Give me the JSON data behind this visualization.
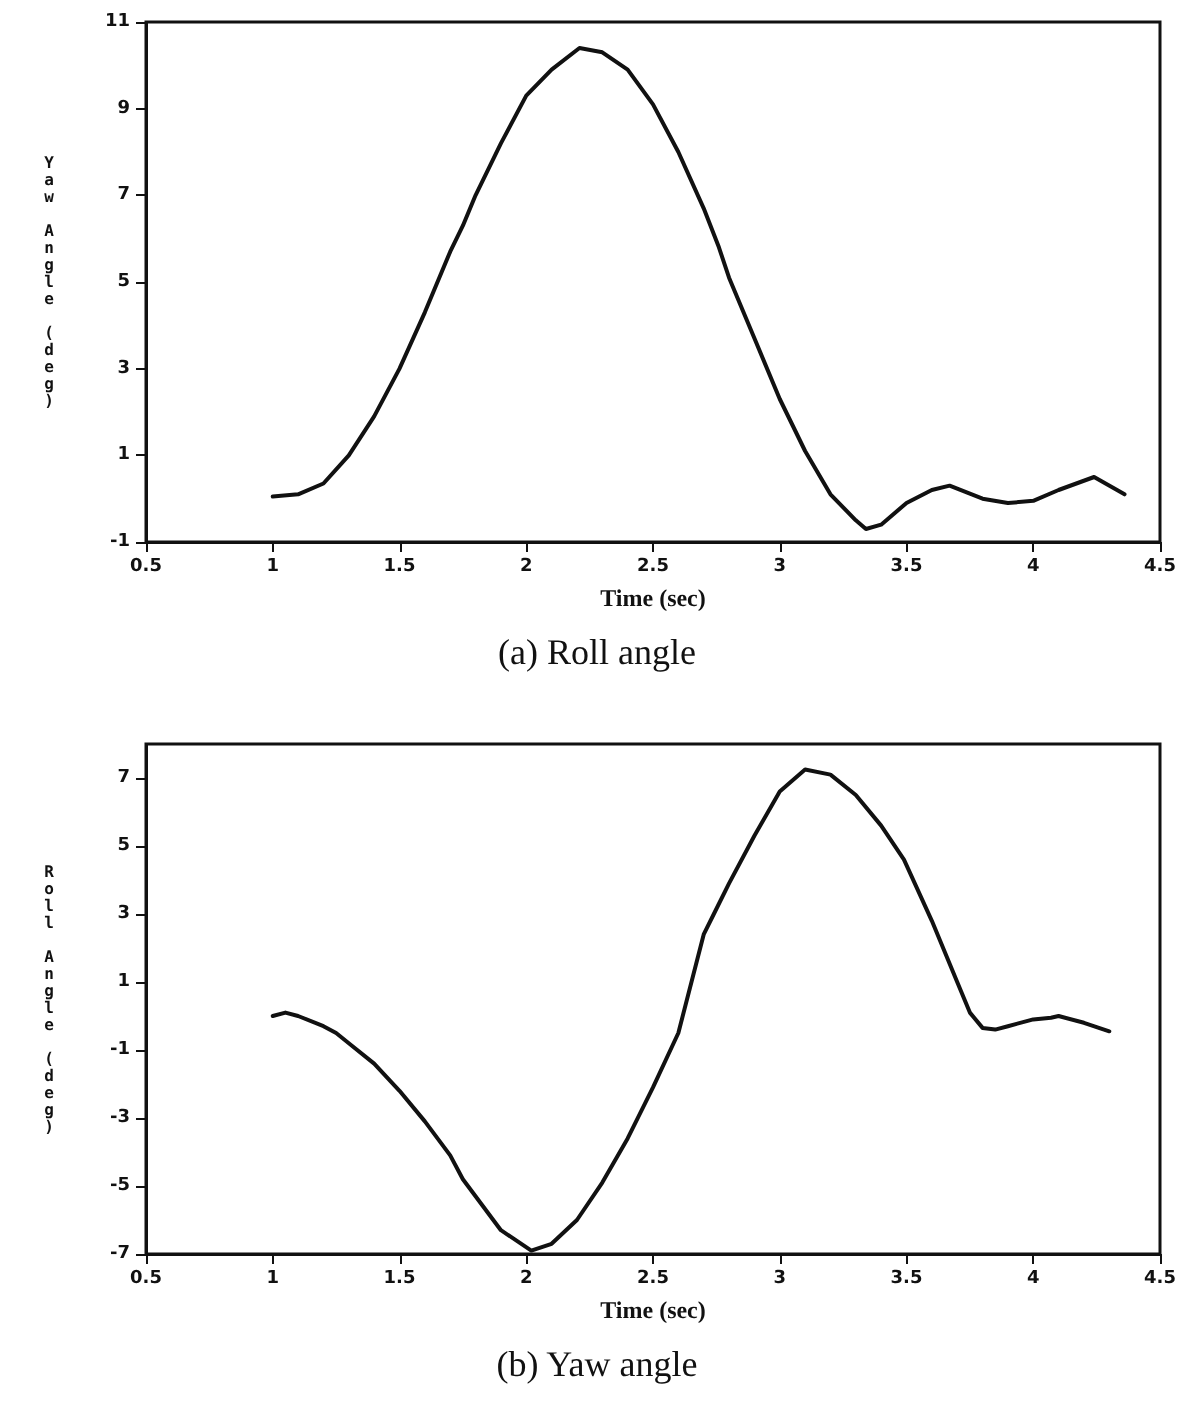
{
  "chart_data": [
    {
      "type": "line",
      "title": "(a) Roll angle",
      "xlabel": "Time (sec)",
      "ylabel": "Yaw Angle (deg)",
      "xlim": [
        0.5,
        4.5
      ],
      "xticks": [
        0.5,
        1,
        1.5,
        2,
        2.5,
        3,
        3.5,
        4,
        4.5
      ],
      "ylim": [
        -1,
        11
      ],
      "yticks": [
        -1,
        1,
        3,
        5,
        7,
        9,
        11
      ],
      "marker": "none",
      "line_style": "solid",
      "series": [
        {
          "color": "#111111",
          "x": [
            1,
            1.1,
            1.2,
            1.3,
            1.4,
            1.5,
            1.6,
            1.7,
            1.75,
            1.8,
            1.9,
            2.0,
            2.1,
            2.21,
            2.3,
            2.4,
            2.5,
            2.6,
            2.7,
            2.76,
            2.8,
            2.9,
            3.0,
            3.1,
            3.2,
            3.3,
            3.34,
            3.4,
            3.5,
            3.6,
            3.67,
            3.8,
            3.9,
            4.0,
            4.1,
            4.24,
            4.36
          ],
          "values": [
            0.05,
            0.1,
            0.35,
            1.0,
            1.9,
            3.0,
            4.3,
            5.7,
            6.3,
            7.0,
            8.2,
            9.3,
            9.9,
            10.4,
            10.3,
            9.9,
            9.1,
            8.0,
            6.7,
            5.8,
            5.1,
            3.7,
            2.3,
            1.1,
            0.1,
            -0.5,
            -0.7,
            -0.6,
            -0.1,
            0.2,
            0.3,
            0.0,
            -0.1,
            -0.05,
            0.2,
            0.5,
            0.1
          ]
        }
      ]
    },
    {
      "type": "line",
      "title": "(b) Yaw angle",
      "xlabel": "Time (sec)",
      "ylabel": "Roll Angle (deg)",
      "xlim": [
        0.5,
        4.5
      ],
      "xticks": [
        0.5,
        1,
        1.5,
        2,
        2.5,
        3,
        3.5,
        4,
        4.5
      ],
      "ylim": [
        -7,
        8
      ],
      "yticks": [
        -7,
        -5,
        -3,
        -1,
        1,
        3,
        5,
        7
      ],
      "marker": "none",
      "line_style": "solid",
      "series": [
        {
          "color": "#111111",
          "x": [
            1,
            1.05,
            1.1,
            1.2,
            1.25,
            1.3,
            1.4,
            1.5,
            1.6,
            1.7,
            1.75,
            1.8,
            1.9,
            2.02,
            2.1,
            2.2,
            2.3,
            2.4,
            2.5,
            2.6,
            2.7,
            2.74,
            2.8,
            2.9,
            3.0,
            3.1,
            3.2,
            3.3,
            3.4,
            3.49,
            3.6,
            3.7,
            3.75,
            3.8,
            3.85,
            3.9,
            4.0,
            4.07,
            4.1,
            4.2,
            4.3
          ],
          "values": [
            0.0,
            0.1,
            0.0,
            -0.3,
            -0.5,
            -0.8,
            -1.4,
            -2.2,
            -3.1,
            -4.1,
            -4.8,
            -5.3,
            -6.3,
            -6.9,
            -6.7,
            -6.0,
            -4.9,
            -3.6,
            -2.1,
            -0.5,
            2.4,
            3.0,
            3.9,
            5.3,
            6.6,
            7.25,
            7.1,
            6.5,
            5.6,
            4.6,
            2.8,
            1.0,
            0.1,
            -0.35,
            -0.4,
            -0.3,
            -0.1,
            -0.05,
            0.0,
            -0.2,
            -0.45
          ]
        }
      ]
    }
  ]
}
